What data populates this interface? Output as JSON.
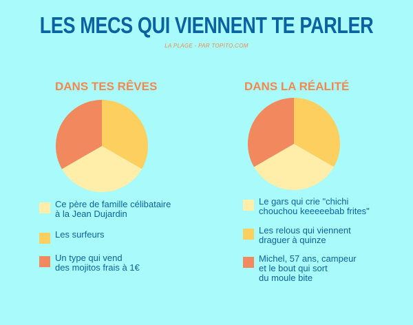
{
  "header": {
    "title": "LES MECS QUI VIENNENT TE PARLER",
    "subtitle": "LA PLAGE - PAR TOPITO.COM"
  },
  "colors": {
    "background": "#a9fbfb",
    "title": "#0b62a0",
    "accent": "#f2874f",
    "light_yellow": "#ffeeaa",
    "yellow": "#fdcf5f",
    "orange": "#f2895e"
  },
  "chart_data": [
    {
      "type": "pie",
      "title": "DANS TES RÊVES",
      "slices": [
        {
          "label": "Ce père de famille célibataire\nà la Jean Dujardin",
          "value": 33.3,
          "color": "#ffeeaa"
        },
        {
          "label": "Les surfeurs",
          "value": 33.3,
          "color": "#fdcf5f"
        },
        {
          "label": "Un type qui vend\ndes mojitos frais à 1€",
          "value": 33.3,
          "color": "#f2895e"
        }
      ]
    },
    {
      "type": "pie",
      "title": "DANS LA RÉALITÉ",
      "slices": [
        {
          "label": "Le gars qui crie \"chichi\nchouchou keeeeebab frites\"",
          "value": 33.3,
          "color": "#ffeeaa"
        },
        {
          "label": "Les relous qui viennent\ndraguer à quinze",
          "value": 33.3,
          "color": "#fdcf5f"
        },
        {
          "label": "Michel, 57 ans, campeur\net le bout qui sort\ndu moule bite",
          "value": 33.3,
          "color": "#f2895e"
        }
      ]
    }
  ]
}
